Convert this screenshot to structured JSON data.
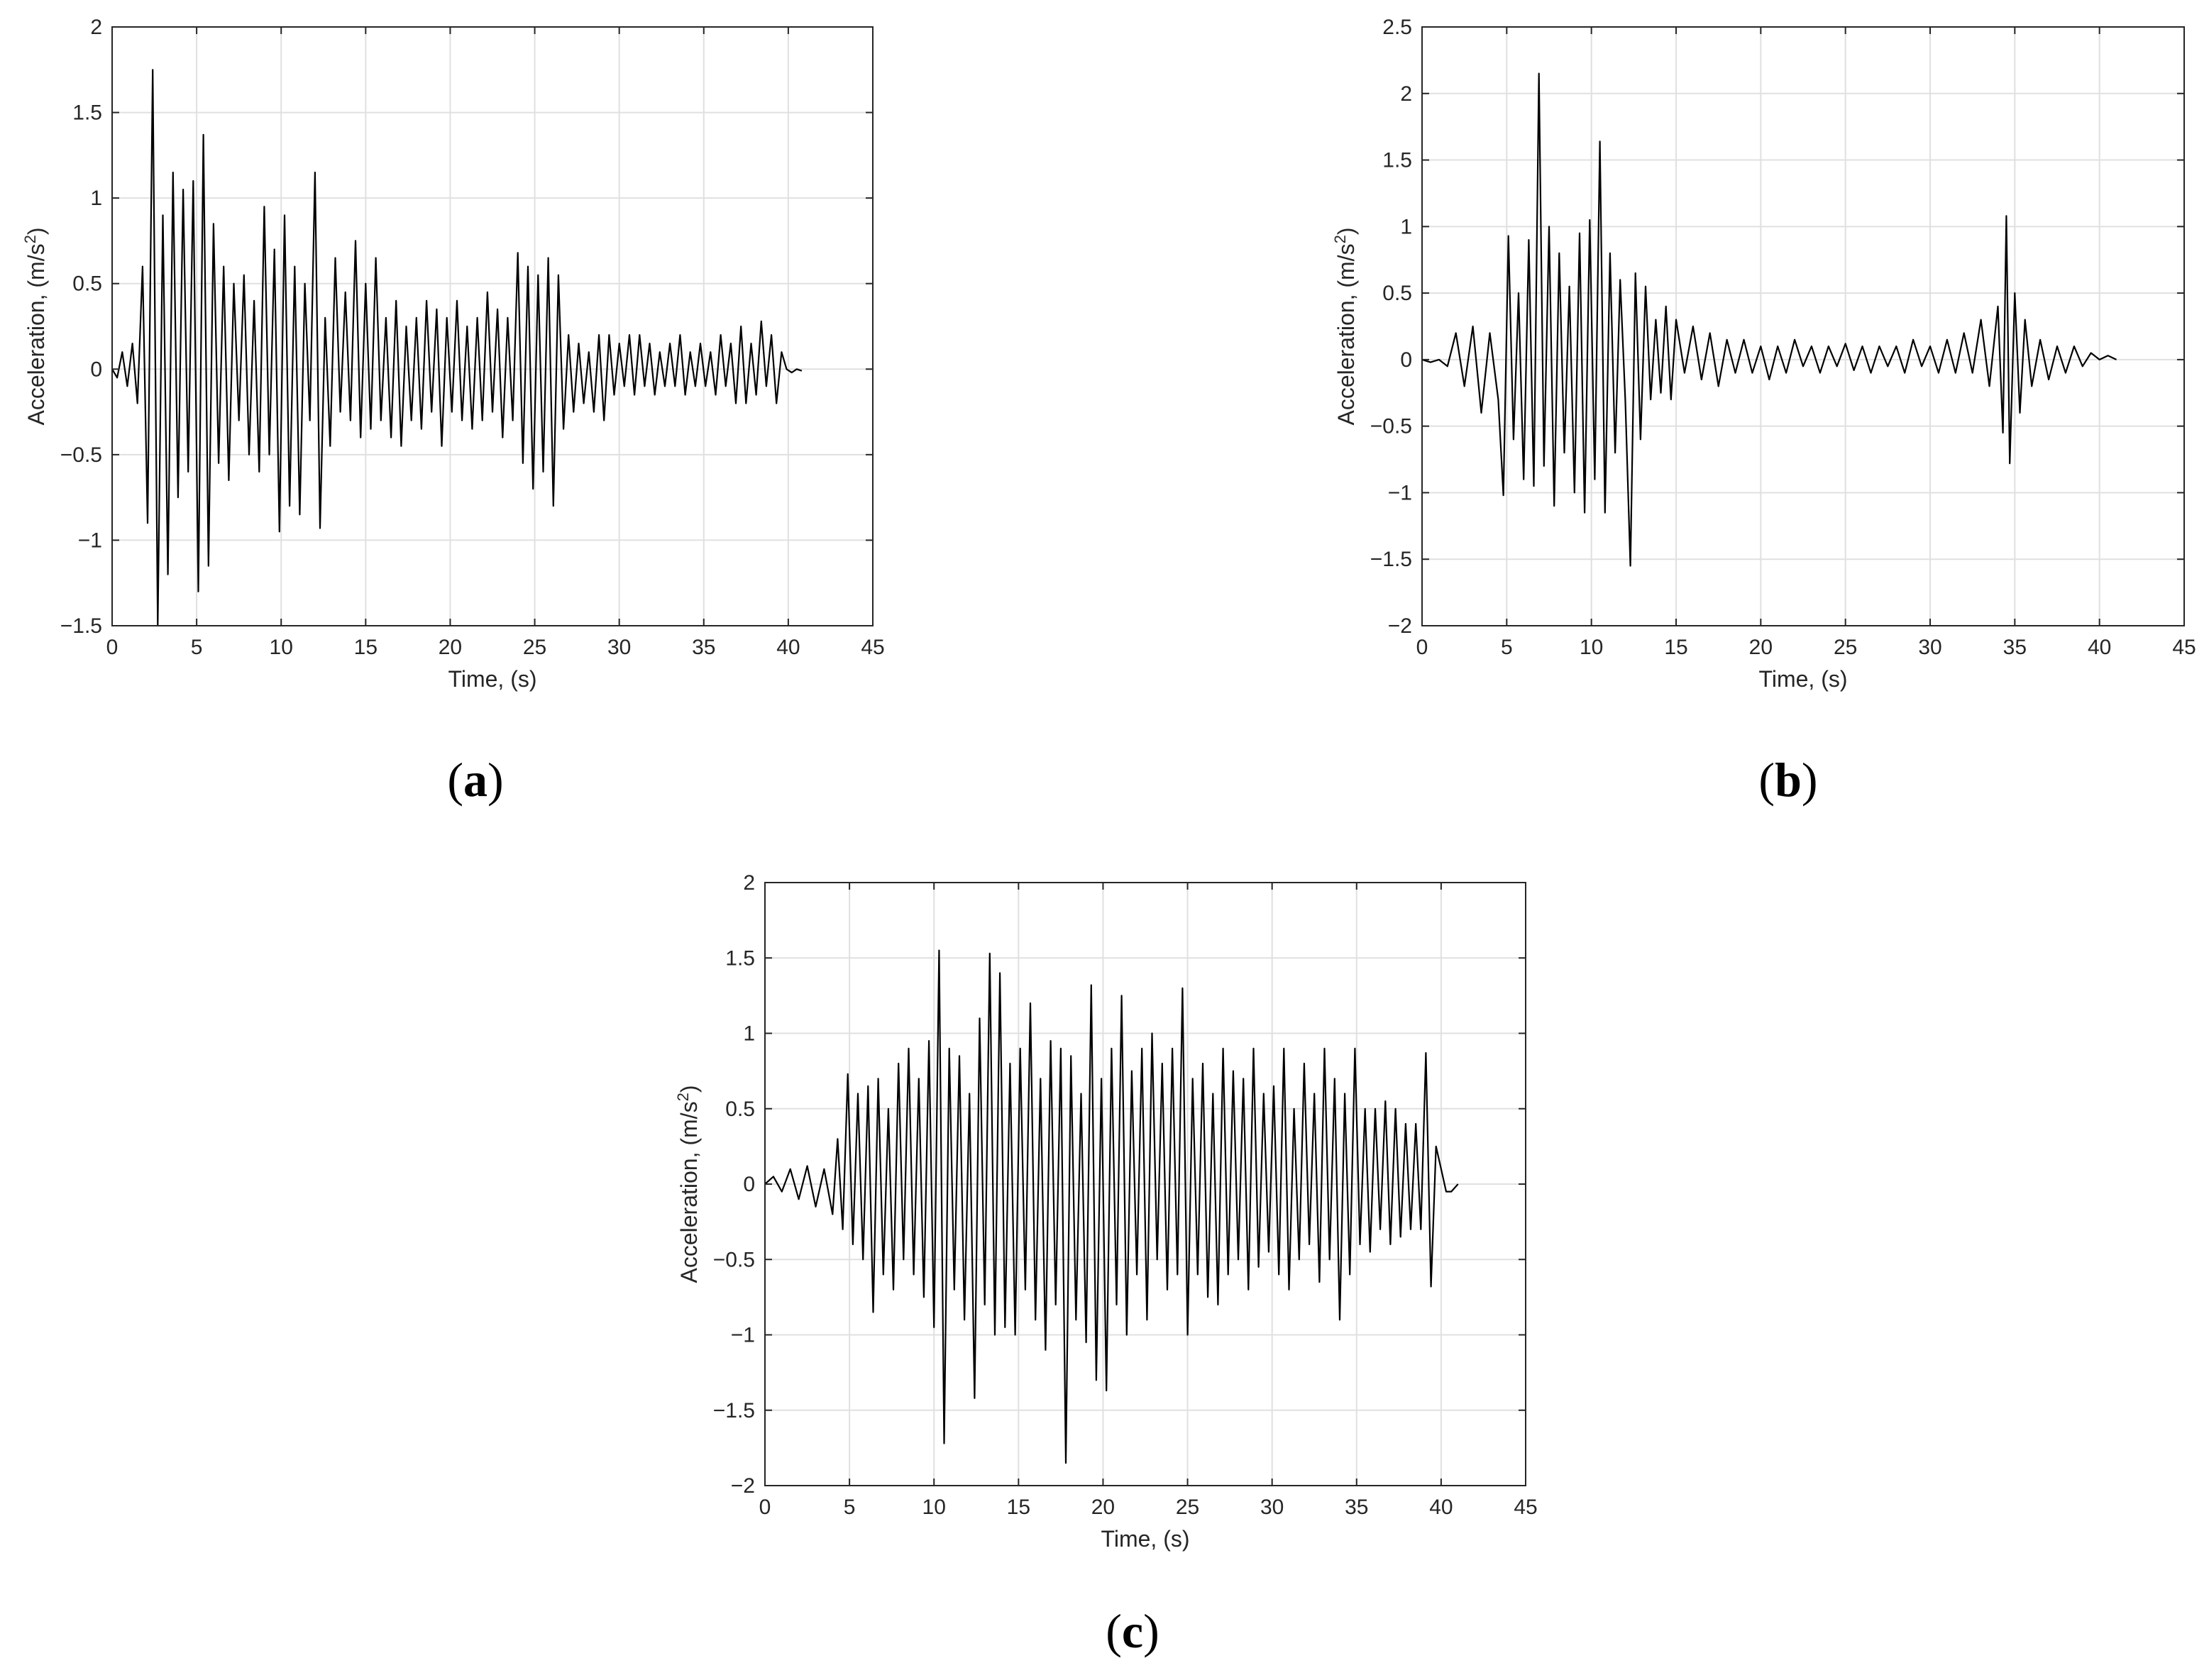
{
  "chart_data": [
    {
      "type": "line",
      "panel": "a",
      "xlabel": "Time, (s)",
      "ylabel": "Acceleration, (m/s2)",
      "ylabel_parts": [
        "Acceleration, (m/s",
        "2",
        ")"
      ],
      "xlim": [
        0,
        45
      ],
      "ylim": [
        -1.5,
        2
      ],
      "xticks": [
        0,
        5,
        10,
        15,
        20,
        25,
        30,
        35,
        40,
        45
      ],
      "xtick_labels": [
        "0",
        "5",
        "10",
        "15",
        "20",
        "25",
        "30",
        "35",
        "40",
        "45"
      ],
      "yticks": [
        -1.5,
        -1,
        -0.5,
        0,
        0.5,
        1,
        1.5,
        2
      ],
      "ytick_labels": [
        "−1.5",
        "−1",
        "−0.5",
        "0",
        "0.5",
        "1",
        "1.5",
        "2"
      ],
      "grid": true,
      "series": [
        {
          "color": "#000000",
          "x": [
            0,
            0.3,
            0.6,
            0.9,
            1.2,
            1.5,
            1.8,
            2.1,
            2.4,
            2.7,
            3.0,
            3.3,
            3.6,
            3.9,
            4.2,
            4.5,
            4.8,
            5.1,
            5.4,
            5.7,
            6.0,
            6.3,
            6.6,
            6.9,
            7.2,
            7.5,
            7.8,
            8.1,
            8.4,
            8.7,
            9.0,
            9.3,
            9.6,
            9.9,
            10.2,
            10.5,
            10.8,
            11.1,
            11.4,
            11.7,
            12.0,
            12.3,
            12.6,
            12.9,
            13.2,
            13.5,
            13.8,
            14.1,
            14.4,
            14.7,
            15.0,
            15.3,
            15.6,
            15.9,
            16.2,
            16.5,
            16.8,
            17.1,
            17.4,
            17.7,
            18.0,
            18.3,
            18.6,
            18.9,
            19.2,
            19.5,
            19.8,
            20.1,
            20.4,
            20.7,
            21.0,
            21.3,
            21.6,
            21.9,
            22.2,
            22.5,
            22.8,
            23.1,
            23.4,
            23.7,
            24.0,
            24.3,
            24.6,
            24.9,
            25.2,
            25.5,
            25.8,
            26.1,
            26.4,
            26.7,
            27.0,
            27.3,
            27.6,
            27.9,
            28.2,
            28.5,
            28.8,
            29.1,
            29.4,
            29.7,
            30.0,
            30.3,
            30.6,
            30.9,
            31.2,
            31.5,
            31.8,
            32.1,
            32.4,
            32.7,
            33.0,
            33.3,
            33.6,
            33.9,
            34.2,
            34.5,
            34.8,
            35.1,
            35.4,
            35.7,
            36.0,
            36.3,
            36.6,
            36.9,
            37.2,
            37.5,
            37.8,
            38.1,
            38.4,
            38.7,
            39.0,
            39.3,
            39.6,
            39.9,
            40.2,
            40.5,
            40.8
          ],
          "y": [
            0.0,
            -0.05,
            0.1,
            -0.1,
            0.15,
            -0.2,
            0.6,
            -0.9,
            1.75,
            -1.5,
            0.9,
            -1.2,
            1.15,
            -0.75,
            1.05,
            -0.6,
            1.1,
            -1.3,
            1.37,
            -1.15,
            0.85,
            -0.55,
            0.6,
            -0.65,
            0.5,
            -0.3,
            0.55,
            -0.5,
            0.4,
            -0.6,
            0.95,
            -0.5,
            0.7,
            -0.95,
            0.9,
            -0.8,
            0.6,
            -0.85,
            0.5,
            -0.3,
            1.15,
            -0.93,
            0.3,
            -0.45,
            0.65,
            -0.25,
            0.45,
            -0.3,
            0.75,
            -0.4,
            0.5,
            -0.35,
            0.65,
            -0.3,
            0.3,
            -0.4,
            0.4,
            -0.45,
            0.25,
            -0.3,
            0.3,
            -0.35,
            0.4,
            -0.25,
            0.35,
            -0.45,
            0.3,
            -0.25,
            0.4,
            -0.3,
            0.25,
            -0.35,
            0.3,
            -0.3,
            0.45,
            -0.25,
            0.35,
            -0.4,
            0.3,
            -0.3,
            0.68,
            -0.55,
            0.6,
            -0.7,
            0.55,
            -0.6,
            0.65,
            -0.8,
            0.55,
            -0.35,
            0.2,
            -0.25,
            0.15,
            -0.2,
            0.1,
            -0.25,
            0.2,
            -0.3,
            0.2,
            -0.15,
            0.15,
            -0.1,
            0.2,
            -0.15,
            0.2,
            -0.1,
            0.15,
            -0.15,
            0.1,
            -0.1,
            0.15,
            -0.1,
            0.2,
            -0.15,
            0.1,
            -0.1,
            0.15,
            -0.1,
            0.1,
            -0.15,
            0.2,
            -0.1,
            0.15,
            -0.2,
            0.25,
            -0.2,
            0.15,
            -0.15,
            0.28,
            -0.1,
            0.2,
            -0.2,
            0.1,
            0.0,
            -0.02,
            0.0,
            -0.01
          ]
        }
      ]
    },
    {
      "type": "line",
      "panel": "b",
      "xlabel": "Time, (s)",
      "ylabel": "Acceleration, (m/s2)",
      "ylabel_parts": [
        "Acceleration, (m/s",
        "2",
        ")"
      ],
      "xlim": [
        0,
        45
      ],
      "ylim": [
        -2,
        2.5
      ],
      "xticks": [
        0,
        5,
        10,
        15,
        20,
        25,
        30,
        35,
        40,
        45
      ],
      "xtick_labels": [
        "0",
        "5",
        "10",
        "15",
        "20",
        "25",
        "30",
        "35",
        "40",
        "45"
      ],
      "yticks": [
        -2,
        -1.5,
        -1,
        -0.5,
        0,
        0.5,
        1,
        1.5,
        2,
        2.5
      ],
      "ytick_labels": [
        "−2",
        "−1.5",
        "−1",
        "−0.5",
        "0",
        "0.5",
        "1",
        "1.5",
        "2",
        "2.5"
      ],
      "grid": true,
      "series": [
        {
          "color": "#000000",
          "x": [
            0,
            0.5,
            1.0,
            1.5,
            2.0,
            2.5,
            3.0,
            3.5,
            4.0,
            4.5,
            4.8,
            5.1,
            5.4,
            5.7,
            6.0,
            6.3,
            6.6,
            6.9,
            7.2,
            7.5,
            7.8,
            8.1,
            8.4,
            8.7,
            9.0,
            9.3,
            9.6,
            9.9,
            10.2,
            10.5,
            10.8,
            11.1,
            11.4,
            11.7,
            12.0,
            12.3,
            12.6,
            12.9,
            13.2,
            13.5,
            13.8,
            14.1,
            14.4,
            14.7,
            15.0,
            15.5,
            16.0,
            16.5,
            17.0,
            17.5,
            18.0,
            18.5,
            19.0,
            19.5,
            20.0,
            20.5,
            21.0,
            21.5,
            22.0,
            22.5,
            23.0,
            23.5,
            24.0,
            24.5,
            25.0,
            25.5,
            26.0,
            26.5,
            27.0,
            27.5,
            28.0,
            28.5,
            29.0,
            29.5,
            30.0,
            30.5,
            31.0,
            31.5,
            32.0,
            32.5,
            33.0,
            33.5,
            34.0,
            34.3,
            34.5,
            34.7,
            35.0,
            35.3,
            35.6,
            36.0,
            36.5,
            37.0,
            37.5,
            38.0,
            38.5,
            39.0,
            39.5,
            40.0,
            40.5,
            41.0
          ],
          "y": [
            0.0,
            -0.02,
            0.0,
            -0.05,
            0.2,
            -0.2,
            0.25,
            -0.4,
            0.2,
            -0.3,
            -1.02,
            0.93,
            -0.6,
            0.5,
            -0.9,
            0.9,
            -0.95,
            2.15,
            -0.8,
            1.0,
            -1.1,
            0.8,
            -0.7,
            0.55,
            -1.0,
            0.95,
            -1.15,
            1.05,
            -0.9,
            1.64,
            -1.15,
            0.8,
            -0.7,
            0.6,
            -0.3,
            -1.55,
            0.65,
            -0.6,
            0.55,
            -0.3,
            0.3,
            -0.25,
            0.4,
            -0.3,
            0.3,
            -0.1,
            0.25,
            -0.15,
            0.2,
            -0.2,
            0.15,
            -0.1,
            0.15,
            -0.1,
            0.1,
            -0.15,
            0.1,
            -0.1,
            0.15,
            -0.05,
            0.1,
            -0.1,
            0.1,
            -0.05,
            0.12,
            -0.08,
            0.1,
            -0.1,
            0.1,
            -0.05,
            0.1,
            -0.1,
            0.15,
            -0.05,
            0.1,
            -0.1,
            0.15,
            -0.1,
            0.2,
            -0.1,
            0.3,
            -0.2,
            0.4,
            -0.55,
            1.08,
            -0.78,
            0.5,
            -0.4,
            0.3,
            -0.2,
            0.15,
            -0.15,
            0.1,
            -0.1,
            0.1,
            -0.05,
            0.05,
            0.0,
            0.03,
            0.0
          ]
        }
      ]
    },
    {
      "type": "line",
      "panel": "c",
      "xlabel": "Time, (s)",
      "ylabel": "Acceleration, (m/s2)",
      "ylabel_parts": [
        "Acceleration, (m/s",
        "2",
        ")"
      ],
      "xlim": [
        0,
        45
      ],
      "ylim": [
        -2,
        2
      ],
      "xticks": [
        0,
        5,
        10,
        15,
        20,
        25,
        30,
        35,
        40,
        45
      ],
      "xtick_labels": [
        "0",
        "5",
        "10",
        "15",
        "20",
        "25",
        "30",
        "35",
        "40",
        "45"
      ],
      "yticks": [
        -2,
        -1.5,
        -1,
        -0.5,
        0,
        0.5,
        1,
        1.5,
        2
      ],
      "ytick_labels": [
        "−2",
        "−1.5",
        "−1",
        "−0.5",
        "0",
        "0.5",
        "1",
        "1.5",
        "2"
      ],
      "grid": true,
      "series": [
        {
          "color": "#000000",
          "x": [
            0,
            0.5,
            1.0,
            1.5,
            2.0,
            2.5,
            3.0,
            3.5,
            4.0,
            4.3,
            4.6,
            4.9,
            5.2,
            5.5,
            5.8,
            6.1,
            6.4,
            6.7,
            7.0,
            7.3,
            7.6,
            7.9,
            8.2,
            8.5,
            8.8,
            9.1,
            9.4,
            9.7,
            10.0,
            10.3,
            10.6,
            10.9,
            11.2,
            11.5,
            11.8,
            12.1,
            12.4,
            12.7,
            13.0,
            13.3,
            13.6,
            13.9,
            14.2,
            14.5,
            14.8,
            15.1,
            15.4,
            15.7,
            16.0,
            16.3,
            16.6,
            16.9,
            17.2,
            17.5,
            17.8,
            18.1,
            18.4,
            18.7,
            19.0,
            19.3,
            19.6,
            19.9,
            20.2,
            20.5,
            20.8,
            21.1,
            21.4,
            21.7,
            22.0,
            22.3,
            22.6,
            22.9,
            23.2,
            23.5,
            23.8,
            24.1,
            24.4,
            24.7,
            25.0,
            25.3,
            25.6,
            25.9,
            26.2,
            26.5,
            26.8,
            27.1,
            27.4,
            27.7,
            28.0,
            28.3,
            28.6,
            28.9,
            29.2,
            29.5,
            29.8,
            30.1,
            30.4,
            30.7,
            31.0,
            31.3,
            31.6,
            31.9,
            32.2,
            32.5,
            32.8,
            33.1,
            33.4,
            33.7,
            34.0,
            34.3,
            34.6,
            34.9,
            35.2,
            35.5,
            35.8,
            36.1,
            36.4,
            36.7,
            37.0,
            37.3,
            37.6,
            37.9,
            38.2,
            38.5,
            38.8,
            39.1,
            39.4,
            39.7,
            40.0,
            40.3,
            40.6,
            41.0
          ],
          "y": [
            0.0,
            0.05,
            -0.05,
            0.1,
            -0.1,
            0.12,
            -0.15,
            0.1,
            -0.2,
            0.3,
            -0.3,
            0.73,
            -0.4,
            0.6,
            -0.5,
            0.65,
            -0.85,
            0.7,
            -0.6,
            0.5,
            -0.7,
            0.8,
            -0.5,
            0.9,
            -0.6,
            0.7,
            -0.75,
            0.95,
            -0.95,
            1.55,
            -1.72,
            0.9,
            -0.7,
            0.85,
            -0.9,
            0.6,
            -1.42,
            1.1,
            -0.8,
            1.53,
            -1.0,
            1.4,
            -0.95,
            0.8,
            -1.0,
            0.9,
            -0.7,
            1.2,
            -0.9,
            0.7,
            -1.1,
            0.95,
            -0.8,
            0.9,
            -1.85,
            0.85,
            -0.9,
            0.6,
            -1.05,
            1.32,
            -1.3,
            0.7,
            -1.37,
            0.9,
            -0.8,
            1.25,
            -1.0,
            0.75,
            -0.6,
            0.9,
            -0.9,
            1.0,
            -0.5,
            0.8,
            -0.7,
            0.9,
            -0.6,
            1.3,
            -1.0,
            0.7,
            -0.6,
            0.8,
            -0.75,
            0.6,
            -0.8,
            0.9,
            -0.6,
            0.75,
            -0.5,
            0.7,
            -0.7,
            0.9,
            -0.55,
            0.6,
            -0.45,
            0.65,
            -0.6,
            0.9,
            -0.7,
            0.5,
            -0.5,
            0.8,
            -0.4,
            0.6,
            -0.65,
            0.9,
            -0.5,
            0.7,
            -0.9,
            0.6,
            -0.6,
            0.9,
            -0.4,
            0.5,
            -0.45,
            0.5,
            -0.3,
            0.55,
            -0.4,
            0.5,
            -0.35,
            0.4,
            -0.3,
            0.4,
            -0.3,
            0.87,
            -0.68,
            0.25,
            0.1,
            -0.05,
            -0.05,
            0.0
          ]
        }
      ]
    }
  ],
  "panel_labels": {
    "a": {
      "open": "(",
      "letter": "a",
      "close": ")"
    },
    "b": {
      "open": "(",
      "letter": "b",
      "close": ")"
    },
    "c": {
      "open": "(",
      "letter": "c",
      "close": ")"
    }
  }
}
